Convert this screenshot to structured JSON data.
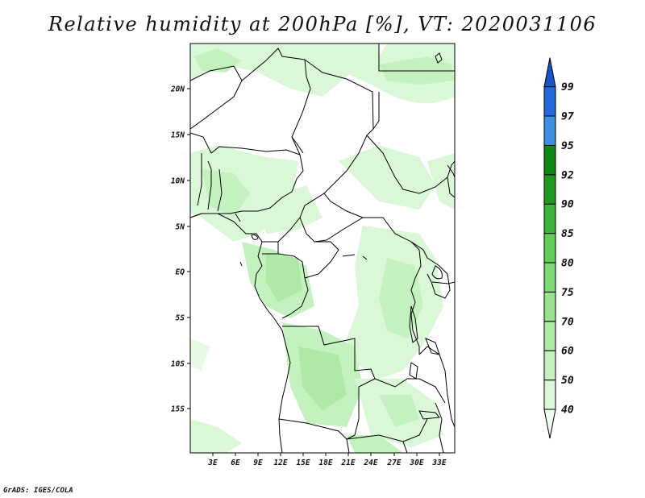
{
  "title": "Relative humidity at 200hPa [%], VT: 2020031106",
  "credit": "GrADS: IGES/COLA",
  "map": {
    "lat_ticks": [
      "20N",
      "15N",
      "10N",
      "5N",
      "EQ",
      "5S",
      "10S",
      "15S"
    ],
    "lon_ticks": [
      "3E",
      "6E",
      "9E",
      "12E",
      "15E",
      "18E",
      "21E",
      "24E",
      "27E",
      "30E",
      "33E"
    ]
  },
  "colorbar": {
    "labels": [
      "40",
      "50",
      "60",
      "70",
      "75",
      "80",
      "85",
      "90",
      "92",
      "95",
      "97",
      "99"
    ],
    "colors": [
      "#f0fff0",
      "#daf8d7",
      "#c4f2bf",
      "#aeeaa6",
      "#96e28c",
      "#7cd972",
      "#5fcd56",
      "#3ab53a",
      "#1e9a20",
      "#0d8a15",
      "#3c8ee6",
      "#1f6bdc",
      "#1a55c8"
    ]
  }
}
